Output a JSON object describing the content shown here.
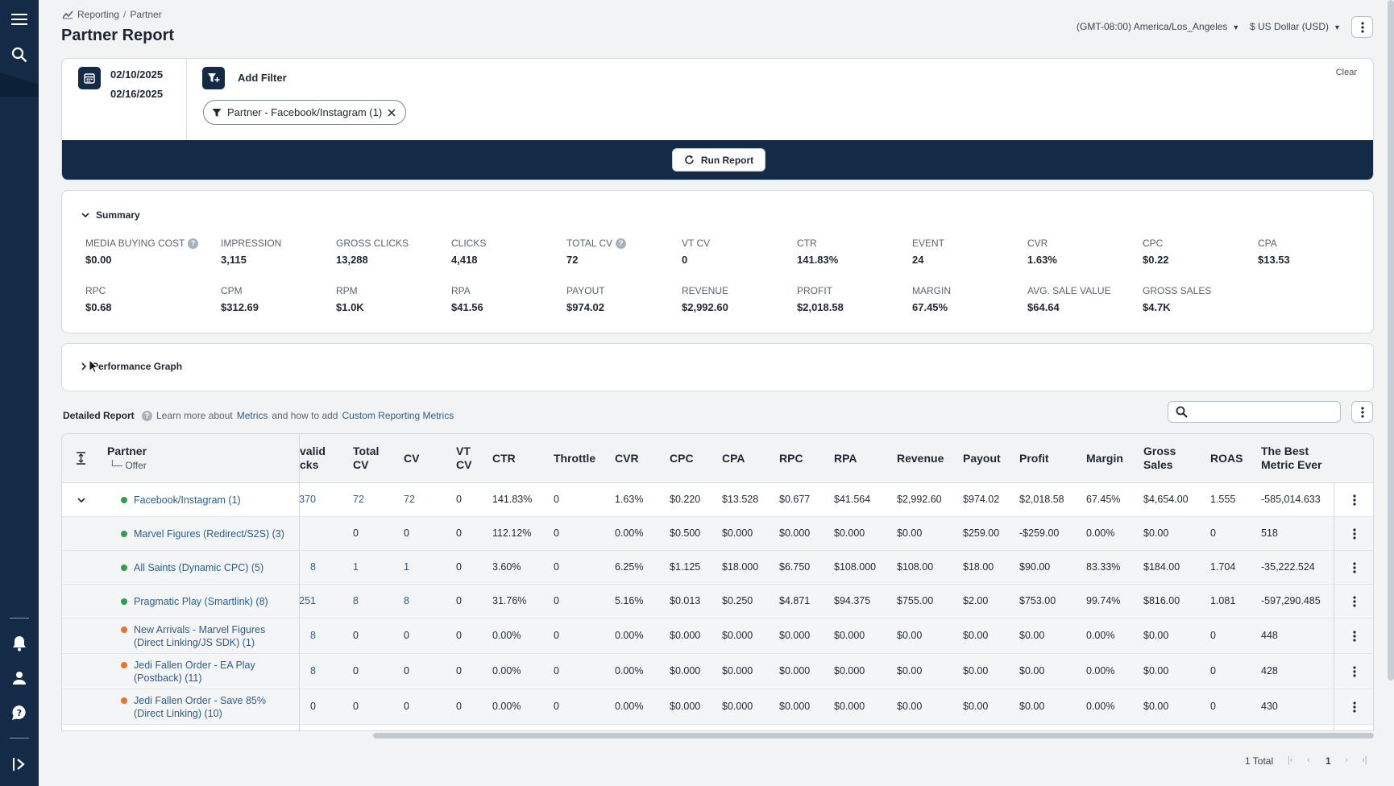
{
  "sidebar": {
    "icons": [
      "hamburger-icon",
      "search-icon",
      "bell-icon",
      "user-icon",
      "help-chat-icon",
      "expand-icon"
    ]
  },
  "breadcrumb": {
    "root": "Reporting",
    "sep": "/",
    "current": "Partner"
  },
  "page": {
    "title": "Partner Report"
  },
  "header": {
    "timezone": "(GMT-08:00) America/Los_Angeles",
    "currency": "$ US Dollar (USD)"
  },
  "filters": {
    "date_start": "02/10/2025",
    "date_end": "02/16/2025",
    "add_filter_label": "Add Filter",
    "clear_label": "Clear",
    "chip_label": "Partner - Facebook/Instagram (1)",
    "run_label": "Run Report"
  },
  "summary": {
    "title": "Summary",
    "metrics": [
      {
        "label": "MEDIA BUYING COST",
        "value": "$0.00"
      },
      {
        "label": "IMPRESSION",
        "value": "3,115"
      },
      {
        "label": "GROSS CLICKS",
        "value": "13,288"
      },
      {
        "label": "CLICKS",
        "value": "4,418"
      },
      {
        "label": "TOTAL CV",
        "value": "72"
      },
      {
        "label": "VT CV",
        "value": "0"
      },
      {
        "label": "CTR",
        "value": "141.83%"
      },
      {
        "label": "EVENT",
        "value": "24"
      },
      {
        "label": "CVR",
        "value": "1.63%"
      },
      {
        "label": "CPC",
        "value": "$0.22"
      },
      {
        "label": "CPA",
        "value": "$13.53"
      },
      {
        "label": "RPC",
        "value": "$0.68"
      },
      {
        "label": "CPM",
        "value": "$312.69"
      },
      {
        "label": "RPM",
        "value": "$1.0K"
      },
      {
        "label": "RPA",
        "value": "$41.56"
      },
      {
        "label": "PAYOUT",
        "value": "$974.02"
      },
      {
        "label": "REVENUE",
        "value": "$2,992.60"
      },
      {
        "label": "PROFIT",
        "value": "$2,018.58"
      },
      {
        "label": "MARGIN",
        "value": "67.45%"
      },
      {
        "label": "AVG. SALE VALUE",
        "value": "$64.64"
      },
      {
        "label": "GROSS SALES",
        "value": "$4.7K"
      }
    ]
  },
  "performance": {
    "title": "Performance Graph"
  },
  "detailed": {
    "title": "Detailed Report",
    "help_prefix": "Learn more about",
    "help_link1": "Metrics",
    "help_mid": "and how to add",
    "help_link2": "Custom Reporting Metrics",
    "search_placeholder": ""
  },
  "table": {
    "partner_header": "Partner",
    "offer_header": "└─ Offer",
    "columns": [
      {
        "l1": "valid",
        "l2": "cks"
      },
      {
        "l1": "Total",
        "l2": "CV"
      },
      {
        "l1": "CV",
        "l2": ""
      },
      {
        "l1": "VT",
        "l2": "CV"
      },
      {
        "l1": "CTR",
        "l2": ""
      },
      {
        "l1": "Throttle",
        "l2": ""
      },
      {
        "l1": "CVR",
        "l2": ""
      },
      {
        "l1": "CPC",
        "l2": ""
      },
      {
        "l1": "CPA",
        "l2": ""
      },
      {
        "l1": "RPC",
        "l2": ""
      },
      {
        "l1": "RPA",
        "l2": ""
      },
      {
        "l1": "Revenue",
        "l2": ""
      },
      {
        "l1": "Payout",
        "l2": ""
      },
      {
        "l1": "Profit",
        "l2": ""
      },
      {
        "l1": "Margin",
        "l2": ""
      },
      {
        "l1": "Gross",
        "l2": "Sales"
      },
      {
        "l1": "ROAS",
        "l2": ""
      },
      {
        "l1": "The Best",
        "l2": "Metric Ever"
      }
    ],
    "rows": [
      {
        "name": "Facebook/Instagram (1)",
        "status": "#2e9e4f",
        "parent": true,
        "cells": [
          "370",
          "72",
          "72",
          "0",
          "141.83%",
          "0",
          "1.63%",
          "$0.220",
          "$13.528",
          "$0.677",
          "$41.564",
          "$2,992.60",
          "$974.02",
          "$2,018.58",
          "67.45%",
          "$4,654.00",
          "1.555",
          "-585,014.633"
        ]
      },
      {
        "name": "Marvel Figures (Redirect/S2S) (3)",
        "status": "#2e9e4f",
        "cells": [
          "",
          "0",
          "0",
          "0",
          "112.12%",
          "0",
          "0.00%",
          "$0.500",
          "$0.000",
          "$0.000",
          "$0.000",
          "$0.00",
          "$259.00",
          "-$259.00",
          "0.00%",
          "$0.00",
          "0",
          "518"
        ]
      },
      {
        "name": "All Saints (Dynamic CPC) (5)",
        "status": "#2e9e4f",
        "cells": [
          "8",
          "1",
          "1",
          "0",
          "3.60%",
          "0",
          "6.25%",
          "$1.125",
          "$18.000",
          "$6.750",
          "$108.000",
          "$108.00",
          "$18.00",
          "$90.00",
          "83.33%",
          "$184.00",
          "1.704",
          "-35,222.524"
        ]
      },
      {
        "name": "Pragmatic Play (Smartlink) (8)",
        "status": "#2e9e4f",
        "cells": [
          "251",
          "8",
          "8",
          "0",
          "31.76%",
          "0",
          "5.16%",
          "$0.013",
          "$0.250",
          "$4.871",
          "$94.375",
          "$755.00",
          "$2.00",
          "$753.00",
          "99.74%",
          "$816.00",
          "1.081",
          "-597,290.485"
        ]
      },
      {
        "name": "New Arrivals - Marvel Figures (Direct Linking/JS SDK) (1)",
        "name1": "New Arrivals - Marvel Figures",
        "name2": "(Direct Linking/JS SDK) (1)",
        "status": "#e8742a",
        "cells": [
          "8",
          "0",
          "0",
          "0",
          "0.00%",
          "0",
          "0.00%",
          "$0.000",
          "$0.000",
          "$0.000",
          "$0.000",
          "$0.00",
          "$0.00",
          "$0.00",
          "0.00%",
          "$0.00",
          "0",
          "448"
        ]
      },
      {
        "name": "Jedi Fallen Order - EA Play (Postback) (11)",
        "name1": "Jedi Fallen Order - EA Play",
        "name2": "(Postback) (11)",
        "status": "#e8742a",
        "cells": [
          "8",
          "0",
          "0",
          "0",
          "0.00%",
          "0",
          "0.00%",
          "$0.000",
          "$0.000",
          "$0.000",
          "$0.000",
          "$0.00",
          "$0.00",
          "$0.00",
          "0.00%",
          "$0.00",
          "0",
          "428"
        ]
      },
      {
        "name": "Jedi Fallen Order - Save 85% (Direct Linking) (10)",
        "name1": "Jedi Fallen Order - Save 85%",
        "name2": "(Direct Linking) (10)",
        "status": "#e8742a",
        "cells": [
          "0",
          "0",
          "0",
          "0",
          "0.00%",
          "0",
          "0.00%",
          "$0.000",
          "$0.000",
          "$0.000",
          "$0.000",
          "$0.00",
          "$0.00",
          "$0.00",
          "0.00%",
          "$0.00",
          "0",
          "430"
        ]
      }
    ]
  },
  "pager": {
    "total": "1 Total",
    "page": "1",
    "first": "|‹",
    "prev": "‹",
    "next": "›",
    "last": "›|"
  }
}
